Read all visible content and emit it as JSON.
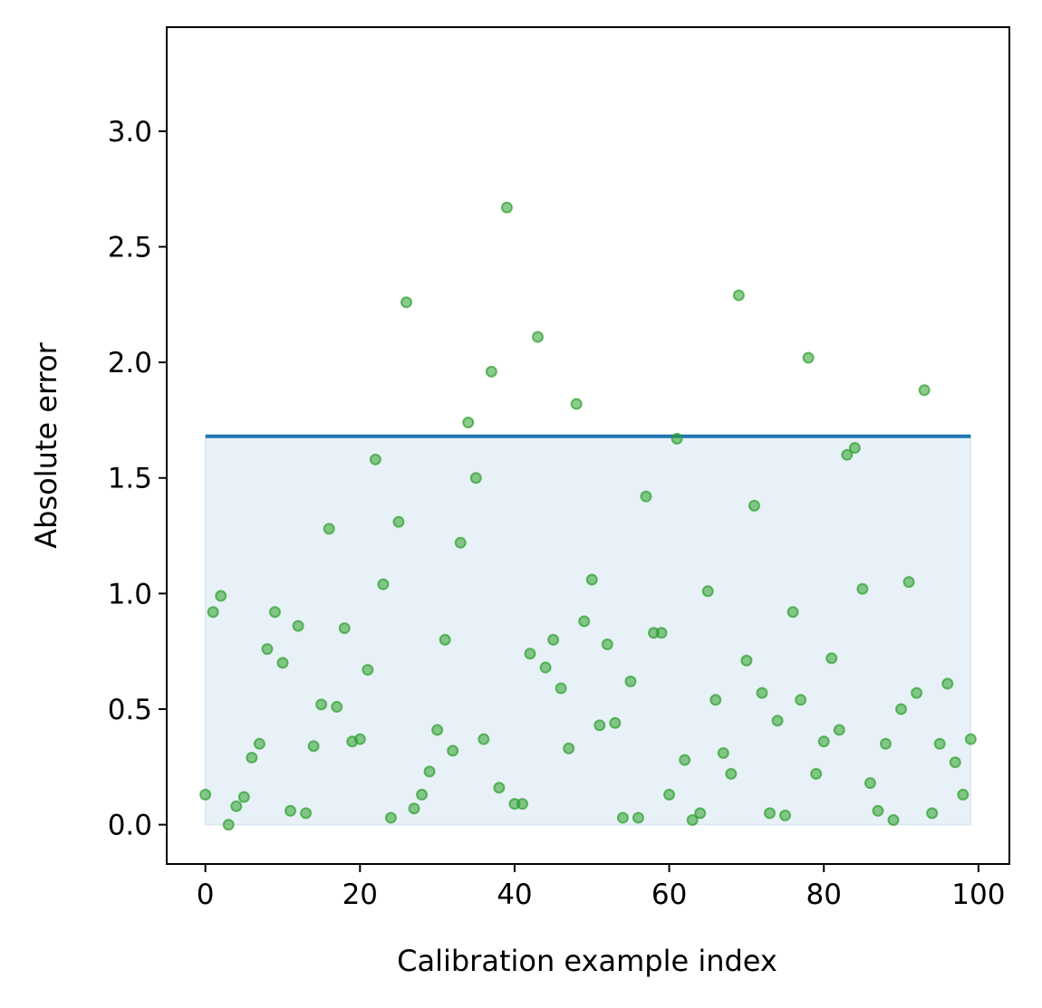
{
  "chart_data": {
    "type": "scatter",
    "title": "",
    "xlabel": "Calibration example index",
    "ylabel": "Absolute error",
    "xlim": [
      -5,
      104
    ],
    "ylim": [
      -0.17,
      3.45
    ],
    "xticks": [
      0,
      20,
      40,
      60,
      80,
      100
    ],
    "xtick_labels": [
      "0",
      "20",
      "40",
      "60",
      "80",
      "100"
    ],
    "yticks": [
      0.0,
      0.5,
      1.0,
      1.5,
      2.0,
      2.5,
      3.0
    ],
    "ytick_labels": [
      "0.0",
      "0.5",
      "1.0",
      "1.5",
      "2.0",
      "2.5",
      "3.0"
    ],
    "grid": false,
    "colors": {
      "points": "#2ca02c",
      "threshold_line": "#1f77b4",
      "band_fill": "#1f77b4"
    },
    "threshold": {
      "value": 1.68,
      "x_start": 0,
      "x_end": 99
    },
    "series": [
      {
        "x": [
          0,
          1,
          2,
          3,
          4,
          5,
          6,
          7,
          8,
          9,
          10,
          11,
          12,
          13,
          14,
          15,
          16,
          17,
          18,
          19,
          20,
          21,
          22,
          23,
          24,
          25,
          26,
          27,
          28,
          29,
          30,
          31,
          32,
          33,
          34,
          35,
          36,
          37,
          38,
          39,
          40,
          41,
          42,
          43,
          44,
          45,
          46,
          47,
          48,
          49,
          50,
          51,
          52,
          53,
          54,
          55,
          56,
          57,
          58,
          59,
          60,
          61,
          62,
          63,
          64,
          65,
          66,
          67,
          68,
          69,
          70,
          71,
          72,
          73,
          74,
          75,
          76,
          77,
          78,
          79,
          80,
          81,
          82,
          83,
          84,
          85,
          86,
          87,
          88,
          89,
          90,
          91,
          92,
          93,
          94,
          95,
          96,
          97,
          98,
          99
        ],
        "y": [
          0.13,
          0.92,
          0.99,
          0.0,
          0.08,
          0.12,
          0.29,
          0.35,
          0.76,
          0.92,
          0.7,
          0.06,
          0.86,
          0.05,
          0.34,
          0.52,
          1.28,
          0.51,
          0.85,
          0.36,
          0.37,
          0.67,
          1.58,
          1.04,
          0.03,
          1.31,
          2.26,
          0.07,
          0.13,
          0.23,
          0.41,
          0.8,
          0.32,
          1.22,
          1.74,
          1.5,
          0.37,
          1.96,
          0.16,
          2.67,
          0.09,
          0.09,
          0.74,
          2.11,
          0.68,
          0.8,
          0.59,
          0.33,
          1.82,
          0.88,
          1.06,
          0.43,
          0.78,
          0.44,
          0.03,
          0.62,
          0.03,
          1.42,
          0.83,
          0.83,
          0.13,
          1.67,
          0.28,
          0.02,
          0.05,
          1.01,
          0.54,
          0.31,
          0.22,
          2.29,
          0.71,
          1.38,
          0.57,
          0.05,
          0.45,
          0.04,
          0.92,
          0.54,
          2.02,
          0.22,
          0.36,
          0.72,
          0.41,
          1.6,
          1.63,
          1.02,
          0.18,
          0.06,
          0.35,
          0.02,
          0.5,
          1.05,
          0.57,
          1.88,
          0.05,
          0.35,
          0.61,
          0.27,
          0.13,
          0.37
        ]
      }
    ]
  }
}
